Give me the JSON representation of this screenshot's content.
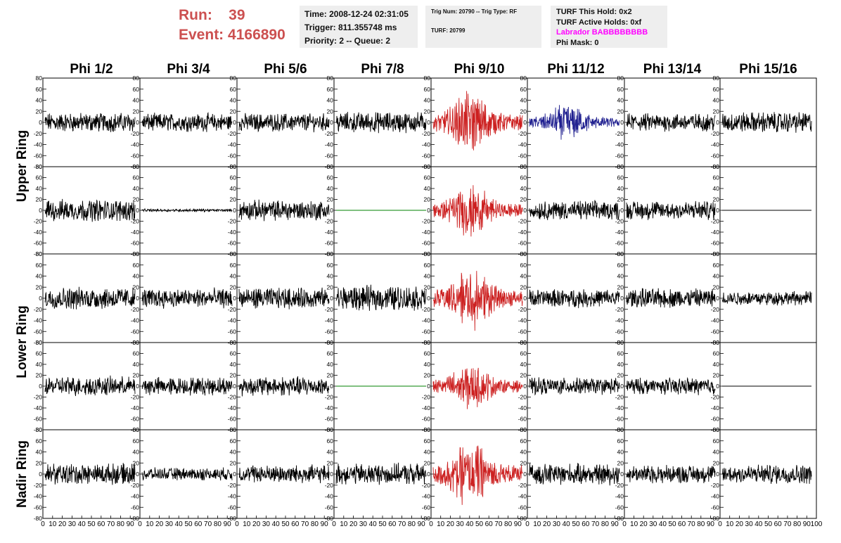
{
  "header": {
    "run_label": "Run:",
    "run_value": "39",
    "event_label": "Event:",
    "event_value": "4166890"
  },
  "info_box_1": {
    "time": "Time: 2008-12-24 02:31:05",
    "trigger": "Trigger: 811.355748 ms",
    "priority": "Priority: 2 -- Queue: 2"
  },
  "info_box_2": {
    "trig": "Trig Num: 20790 -- Trig Type: RF",
    "turf": "TURF: 20799"
  },
  "info_box_3": {
    "this_hold": "TURF This Hold: 0x2",
    "active_holds": "TURF Active Holds: 0xf",
    "labrador": "Labrador BABBBBBBBB",
    "phi_mask": "Phi Mask: 0"
  },
  "colors": {
    "normal_trace": "#000000",
    "triggered_trace": "#cc2020",
    "secondary_trace": "#202090",
    "flat_trace": "#008000"
  },
  "chart_data": {
    "type": "line",
    "columns": [
      "Phi 1/2",
      "Phi 3/4",
      "Phi 5/6",
      "Phi 7/8",
      "Phi 9/10",
      "Phi 11/12",
      "Phi 13/14",
      "Phi 15/16"
    ],
    "ring_labels": [
      "Upper Ring",
      "Lower Ring",
      "Nadir Ring"
    ],
    "ylim": [
      -80,
      80
    ],
    "xlim": [
      0,
      100
    ],
    "y_ticks": [
      "80",
      "60",
      "40",
      "20",
      "0",
      "-20",
      "-40",
      "-60",
      "-80"
    ],
    "x_ticks": [
      "0",
      "10",
      "20",
      "30",
      "40",
      "50",
      "60",
      "70",
      "80",
      "90",
      "100"
    ],
    "rows": [
      [
        {
          "kind": "noise",
          "amp": 14,
          "color": "normal"
        },
        {
          "kind": "noise",
          "amp": 13,
          "color": "normal"
        },
        {
          "kind": "noise",
          "amp": 13,
          "color": "normal"
        },
        {
          "kind": "noise",
          "amp": 15,
          "color": "normal"
        },
        {
          "kind": "pulse",
          "amp": 45,
          "color": "triggered"
        },
        {
          "kind": "pulse",
          "amp": 28,
          "color": "secondary"
        },
        {
          "kind": "noise",
          "amp": 13,
          "color": "normal"
        },
        {
          "kind": "noise",
          "amp": 15,
          "color": "normal"
        }
      ],
      [
        {
          "kind": "noise",
          "amp": 16,
          "color": "normal"
        },
        {
          "kind": "noise",
          "amp": 2,
          "color": "normal"
        },
        {
          "kind": "noise",
          "amp": 15,
          "color": "normal"
        },
        {
          "kind": "flat",
          "amp": 0,
          "color": "flat"
        },
        {
          "kind": "pulse",
          "amp": 40,
          "color": "triggered"
        },
        {
          "kind": "noise",
          "amp": 14,
          "color": "normal"
        },
        {
          "kind": "noise",
          "amp": 14,
          "color": "normal"
        },
        {
          "kind": "flat",
          "amp": 0,
          "color": "normal"
        }
      ],
      [
        {
          "kind": "noise",
          "amp": 16,
          "color": "normal"
        },
        {
          "kind": "noise",
          "amp": 14,
          "color": "normal"
        },
        {
          "kind": "noise",
          "amp": 15,
          "color": "normal"
        },
        {
          "kind": "noise",
          "amp": 18,
          "color": "normal"
        },
        {
          "kind": "pulse",
          "amp": 48,
          "color": "triggered"
        },
        {
          "kind": "noise",
          "amp": 13,
          "color": "normal"
        },
        {
          "kind": "noise",
          "amp": 14,
          "color": "normal"
        },
        {
          "kind": "noise",
          "amp": 10,
          "color": "normal"
        }
      ],
      [
        {
          "kind": "noise",
          "amp": 14,
          "color": "normal"
        },
        {
          "kind": "noise",
          "amp": 13,
          "color": "normal"
        },
        {
          "kind": "noise",
          "amp": 14,
          "color": "normal"
        },
        {
          "kind": "flat",
          "amp": 0,
          "color": "flat"
        },
        {
          "kind": "pulse",
          "amp": 35,
          "color": "triggered"
        },
        {
          "kind": "noise",
          "amp": 12,
          "color": "normal"
        },
        {
          "kind": "noise",
          "amp": 12,
          "color": "normal"
        },
        {
          "kind": "flat",
          "amp": 0,
          "color": "normal"
        }
      ],
      [
        {
          "kind": "noise",
          "amp": 15,
          "color": "normal"
        },
        {
          "kind": "noise",
          "amp": 9,
          "color": "normal"
        },
        {
          "kind": "noise",
          "amp": 13,
          "color": "normal"
        },
        {
          "kind": "noise",
          "amp": 15,
          "color": "normal"
        },
        {
          "kind": "pulse",
          "amp": 50,
          "color": "triggered"
        },
        {
          "kind": "noise",
          "amp": 15,
          "color": "normal"
        },
        {
          "kind": "noise",
          "amp": 13,
          "color": "normal"
        },
        {
          "kind": "noise",
          "amp": 14,
          "color": "normal"
        }
      ]
    ]
  }
}
